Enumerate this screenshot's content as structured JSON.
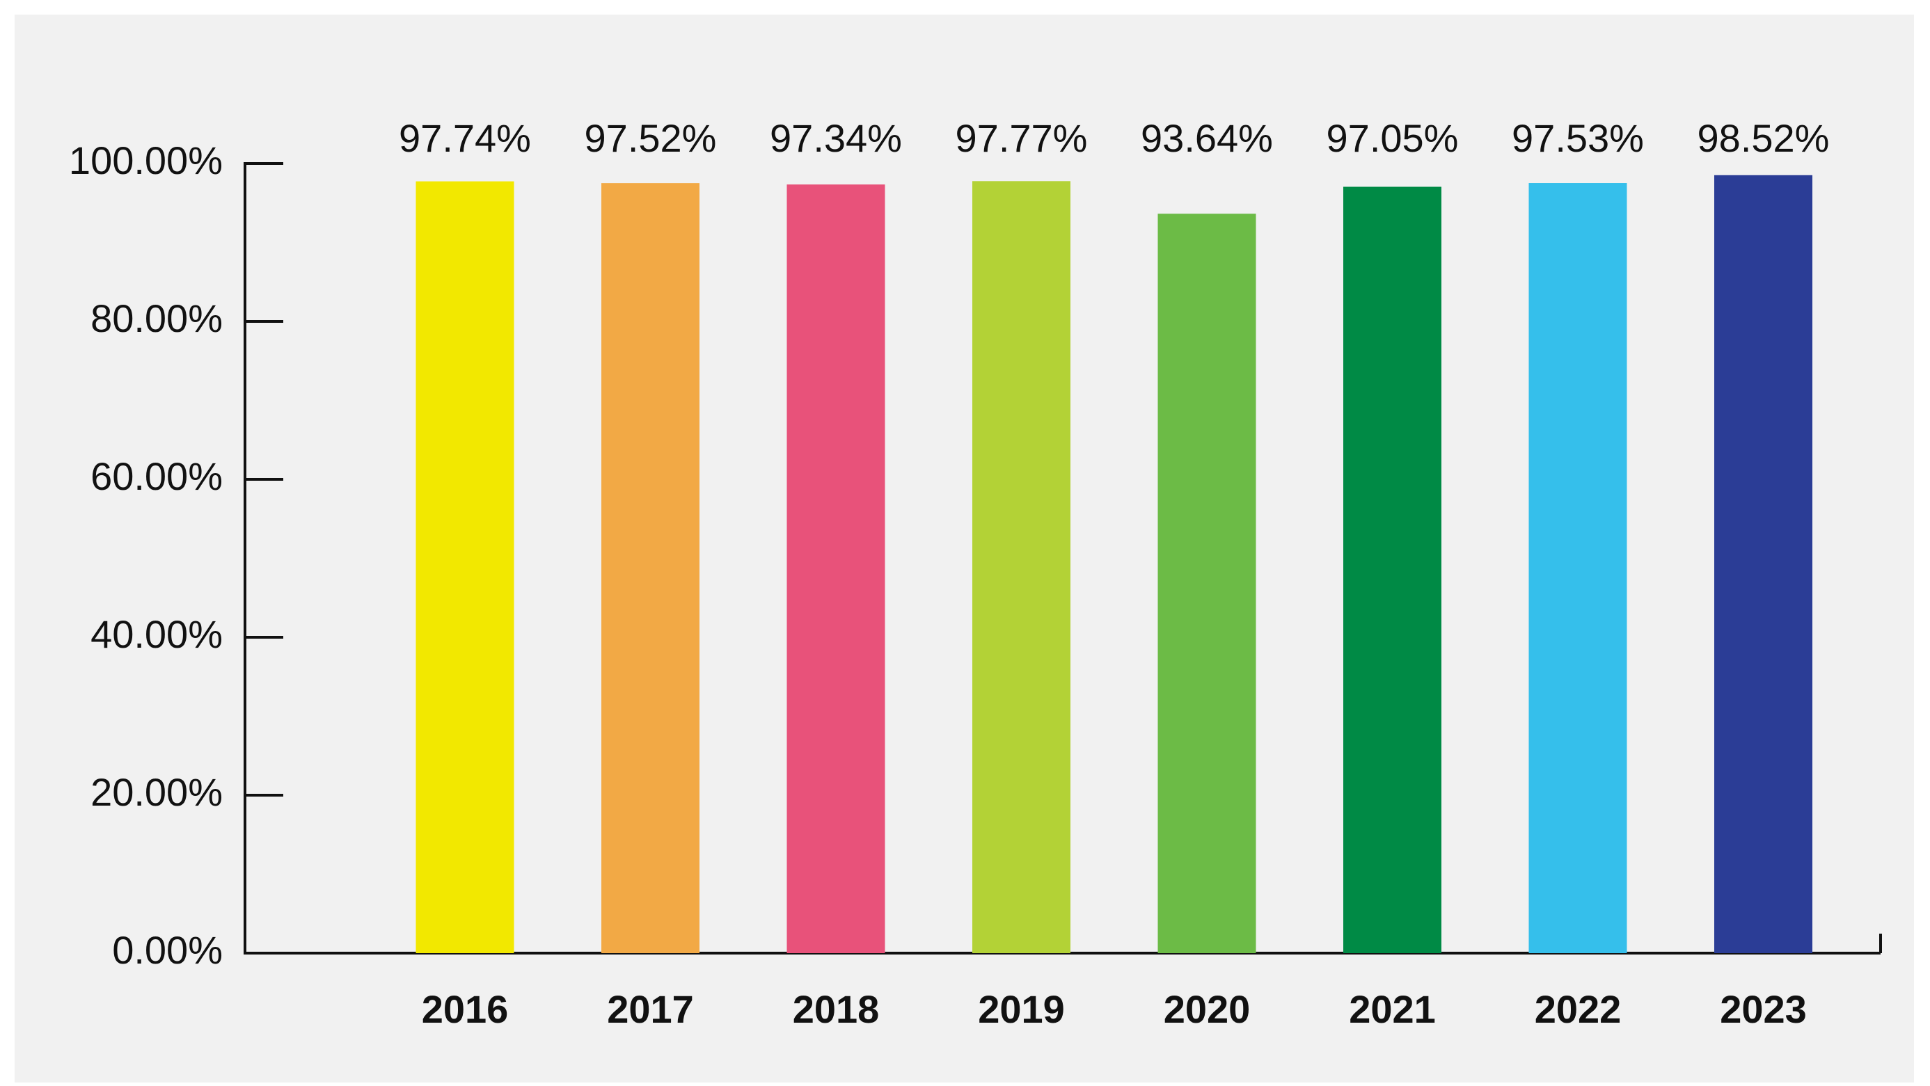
{
  "chart_data": {
    "type": "bar",
    "categories": [
      "2016",
      "2017",
      "2018",
      "2019",
      "2020",
      "2021",
      "2022",
      "2023"
    ],
    "values": [
      97.74,
      97.52,
      97.34,
      97.77,
      93.64,
      97.05,
      97.53,
      98.52
    ],
    "value_labels": [
      "97.74%",
      "97.52%",
      "97.34%",
      "97.77%",
      "93.64%",
      "97.05%",
      "97.53%",
      "98.52%"
    ],
    "colors": [
      "#f2e800",
      "#f2a945",
      "#e8527a",
      "#b3d236",
      "#6cbb46",
      "#008a45",
      "#35bfeb",
      "#2b3d96"
    ],
    "ylim": [
      0,
      100
    ],
    "yticks": [
      {
        "value": 0,
        "label": "0.00%"
      },
      {
        "value": 20,
        "label": "20.00%"
      },
      {
        "value": 40,
        "label": "40.00%"
      },
      {
        "value": 60,
        "label": "60.00%"
      },
      {
        "value": 80,
        "label": "80.00%"
      },
      {
        "value": 100,
        "label": "100.00%"
      }
    ]
  }
}
